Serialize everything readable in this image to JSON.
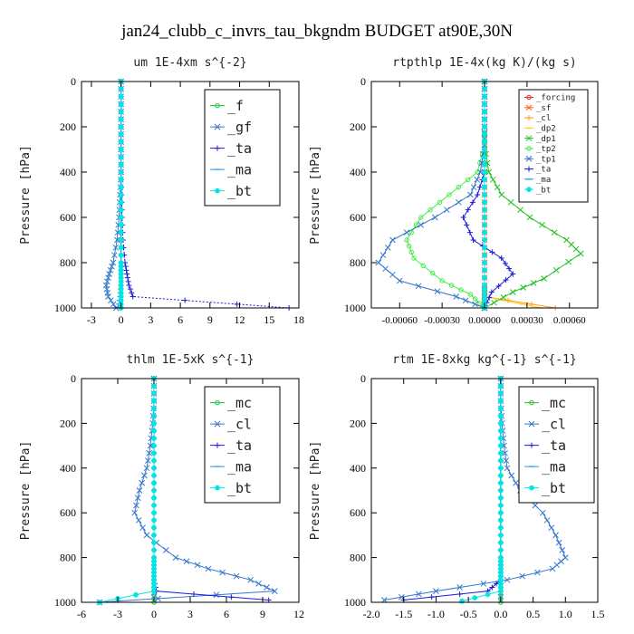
{
  "title": "jan24_clubb_c_invrs_tau_bkgndm  BUDGET at90E,30N",
  "colors": {
    "red": "#e8201a",
    "orange_red": "#ff5a1e",
    "orange": "#ff9a1e",
    "yellow": "#ffcc00",
    "green": "#20c020",
    "light_green": "#44ee44",
    "steel_blue": "#3377cc",
    "blue": "#1a1ad8",
    "sky_blue": "#2299ee",
    "cyan": "#00e5e5"
  },
  "chart_data": [
    {
      "type": "line",
      "title": "um  1E-4xm s^{-2}",
      "xlabel": "",
      "ylabel": "Pressure [hPa]",
      "xlim": [
        -4,
        18
      ],
      "ylim": [
        1000,
        0
      ],
      "xticks": [
        -3,
        0,
        3,
        6,
        9,
        12,
        15,
        18
      ],
      "xtick_labels": [
        "-3",
        "0",
        "3",
        "6",
        "9",
        "12",
        "15",
        "18"
      ],
      "yticks": [
        0,
        200,
        400,
        600,
        800,
        1000
      ],
      "ytick_labels": [
        "0",
        "200",
        "400",
        "600",
        "800",
        "1000"
      ],
      "legend_position": "top-right",
      "legend_font_size": "large",
      "series": [
        {
          "name": "_f",
          "color": "#20c020",
          "marker": "circle",
          "x": [
            0,
            0,
            0,
            0,
            0,
            0,
            0,
            0,
            0,
            0,
            0,
            0,
            0
          ],
          "y": [
            0,
            100,
            200,
            300,
            400,
            500,
            600,
            700,
            800,
            850,
            900,
            950,
            1000
          ]
        },
        {
          "name": "_gf",
          "color": "#3377cc",
          "marker": "x",
          "x": [
            0,
            0,
            0,
            0,
            0,
            -0.1,
            -0.2,
            -0.4,
            -0.8,
            -1.2,
            -1.5,
            -1.3,
            -0.5
          ],
          "y": [
            0,
            100,
            200,
            300,
            400,
            500,
            600,
            700,
            800,
            850,
            900,
            950,
            1000
          ]
        },
        {
          "name": "_ta",
          "color": "#1a1ad8",
          "marker": "plus",
          "x": [
            0,
            0,
            0,
            0,
            0,
            0.05,
            0.1,
            0.2,
            0.4,
            0.6,
            0.8,
            1.2,
            17
          ],
          "y": [
            0,
            100,
            200,
            300,
            400,
            500,
            600,
            700,
            800,
            850,
            900,
            950,
            1000
          ]
        },
        {
          "name": "_ma",
          "color": "#2299ee",
          "marker": "dash",
          "x": [
            0,
            0,
            0,
            0,
            0,
            0,
            0,
            0,
            0,
            0,
            0,
            -0.1,
            -0.3
          ],
          "y": [
            0,
            100,
            200,
            300,
            400,
            500,
            600,
            700,
            800,
            850,
            900,
            950,
            1000
          ]
        },
        {
          "name": "_bt",
          "color": "#00e5e5",
          "marker": "dot",
          "x": [
            0,
            0,
            0,
            0,
            0,
            0,
            0,
            0,
            0,
            0,
            0,
            0,
            0
          ],
          "y": [
            0,
            100,
            200,
            300,
            400,
            500,
            600,
            700,
            800,
            850,
            900,
            950,
            1000
          ]
        }
      ]
    },
    {
      "type": "line",
      "title": "rtpthlp  1E-4x(kg K)/(kg s)",
      "xlabel": "",
      "ylabel": "Pressure [hPa]",
      "xlim": [
        -0.0008,
        0.0008
      ],
      "ylim": [
        1000,
        0
      ],
      "xticks": [
        -0.0006,
        -0.0003,
        0.0,
        0.0003,
        0.0006
      ],
      "xtick_labels": [
        "-0.00060",
        "-0.00030",
        "0.00000",
        "0.00030",
        "0.00060"
      ],
      "yticks": [
        0,
        200,
        400,
        600,
        800,
        1000
      ],
      "ytick_labels": [
        "0",
        "200",
        "400",
        "600",
        "800",
        "1000"
      ],
      "legend_position": "top-right",
      "legend_font_size": "small",
      "series": [
        {
          "name": "_forcing",
          "color": "#e8201a",
          "marker": "circle",
          "x": [
            0,
            0,
            0,
            0,
            0,
            0,
            0,
            0,
            0,
            0,
            0,
            0
          ],
          "y": [
            0,
            100,
            200,
            300,
            400,
            500,
            600,
            700,
            800,
            900,
            950,
            1000
          ]
        },
        {
          "name": "_sf",
          "color": "#ff5a1e",
          "marker": "x",
          "x": [
            0,
            0,
            0,
            0,
            0,
            0,
            0,
            0,
            0,
            0,
            0,
            0
          ],
          "y": [
            0,
            100,
            200,
            300,
            400,
            500,
            600,
            700,
            800,
            900,
            950,
            1000
          ]
        },
        {
          "name": "_cl",
          "color": "#ff9a1e",
          "marker": "plus",
          "x": [
            0,
            0,
            0,
            0,
            0,
            0,
            0,
            0,
            0,
            0,
            0,
            0.0005
          ],
          "y": [
            0,
            100,
            200,
            300,
            400,
            500,
            600,
            700,
            800,
            900,
            950,
            1000
          ]
        },
        {
          "name": "_dp2",
          "color": "#ffcc00",
          "marker": "dash",
          "x": [
            0,
            0,
            0,
            0,
            0,
            0,
            0,
            0,
            0,
            0,
            0,
            0.0004
          ],
          "y": [
            0,
            100,
            200,
            300,
            400,
            500,
            600,
            700,
            800,
            900,
            950,
            1000
          ]
        },
        {
          "name": "_dp1",
          "color": "#20c020",
          "marker": "x",
          "x": [
            0,
            0,
            0,
            0,
            3e-05,
            0.00012,
            0.00032,
            0.00058,
            0.00068,
            0.00042,
            0.0002,
            0
          ],
          "y": [
            0,
            100,
            200,
            280,
            400,
            500,
            600,
            700,
            760,
            870,
            930,
            1000
          ]
        },
        {
          "name": "_tp2",
          "color": "#44ee44",
          "marker": "circle",
          "x": [
            0,
            0,
            0,
            0,
            -5e-05,
            -0.00025,
            -0.00045,
            -0.00055,
            -0.0005,
            -0.0003,
            -0.0001,
            0
          ],
          "y": [
            0,
            100,
            200,
            280,
            400,
            500,
            600,
            700,
            780,
            880,
            940,
            1000
          ]
        },
        {
          "name": "_tp1",
          "color": "#3377cc",
          "marker": "x",
          "x": [
            0,
            0,
            0,
            0,
            -3e-05,
            -0.0001,
            -0.00035,
            -0.00065,
            -0.00075,
            -0.0006,
            -0.0002,
            0
          ],
          "y": [
            0,
            100,
            200,
            280,
            400,
            500,
            600,
            700,
            800,
            880,
            950,
            1000
          ]
        },
        {
          "name": "_ta",
          "color": "#1a1ad8",
          "marker": "plus",
          "x": [
            0,
            0,
            0,
            0,
            0,
            -5e-05,
            -0.00015,
            -8e-05,
            0.00012,
            0.0002,
            5e-05,
            0
          ],
          "y": [
            0,
            100,
            200,
            300,
            400,
            500,
            600,
            700,
            780,
            850,
            930,
            1000
          ]
        },
        {
          "name": "_ma",
          "color": "#2299ee",
          "marker": "dash",
          "x": [
            0,
            0,
            0,
            0,
            0,
            0,
            0,
            0,
            0,
            0,
            0,
            0
          ],
          "y": [
            0,
            100,
            200,
            300,
            400,
            500,
            600,
            700,
            800,
            900,
            950,
            1000
          ]
        },
        {
          "name": "_bt",
          "color": "#00e5e5",
          "marker": "dot",
          "x": [
            0,
            0,
            0,
            0,
            0,
            0,
            0,
            0,
            0,
            0,
            0,
            0
          ],
          "y": [
            0,
            100,
            200,
            300,
            400,
            500,
            600,
            700,
            800,
            900,
            950,
            1000
          ]
        }
      ]
    },
    {
      "type": "line",
      "title": "thlm  1E-5xK s^{-1}",
      "xlabel": "",
      "ylabel": "Pressure [hPa]",
      "xlim": [
        -6,
        12
      ],
      "ylim": [
        1000,
        0
      ],
      "xticks": [
        -6,
        -3,
        0,
        3,
        6,
        9,
        12
      ],
      "xtick_labels": [
        "-6",
        "-3",
        "0",
        "3",
        "6",
        "9",
        "12"
      ],
      "yticks": [
        0,
        200,
        400,
        600,
        800,
        1000
      ],
      "ytick_labels": [
        "0",
        "200",
        "400",
        "600",
        "800",
        "1000"
      ],
      "legend_position": "top-right",
      "legend_font_size": "large",
      "series": [
        {
          "name": "_mc",
          "color": "#20c020",
          "marker": "circle",
          "x": [
            0,
            0,
            0,
            0,
            0,
            0,
            0,
            0,
            0,
            0,
            0,
            0,
            0
          ],
          "y": [
            0,
            100,
            200,
            300,
            400,
            500,
            600,
            700,
            800,
            850,
            900,
            950,
            1000
          ]
        },
        {
          "name": "_cl",
          "color": "#3377cc",
          "marker": "x",
          "x": [
            0,
            0,
            -0.1,
            -0.3,
            -0.6,
            -1.2,
            -1.6,
            -0.6,
            1.8,
            4.5,
            8.0,
            10.0,
            -4.5
          ],
          "y": [
            0,
            100,
            200,
            300,
            400,
            500,
            600,
            700,
            800,
            850,
            900,
            950,
            1000
          ]
        },
        {
          "name": "_ta",
          "color": "#1a1ad8",
          "marker": "plus",
          "x": [
            0,
            0,
            0,
            0,
            0,
            0,
            0,
            0,
            0,
            0,
            0,
            0.2,
            9.5
          ],
          "y": [
            0,
            100,
            200,
            300,
            400,
            500,
            600,
            700,
            800,
            850,
            900,
            950,
            990
          ]
        },
        {
          "name": "_ma",
          "color": "#2299ee",
          "marker": "dash",
          "x": [
            0,
            0,
            0,
            0,
            0,
            0,
            0,
            0,
            0,
            0,
            0,
            0,
            0
          ],
          "y": [
            0,
            100,
            200,
            300,
            400,
            500,
            600,
            700,
            800,
            850,
            900,
            950,
            1000
          ]
        },
        {
          "name": "_bt",
          "color": "#00e5e5",
          "marker": "dot",
          "x": [
            0,
            0,
            0,
            0,
            0,
            0,
            0,
            0,
            0,
            0,
            0,
            0,
            -4.5
          ],
          "y": [
            0,
            100,
            200,
            300,
            400,
            500,
            600,
            700,
            800,
            850,
            900,
            950,
            1000
          ]
        }
      ]
    },
    {
      "type": "line",
      "title": "rtm  1E-8xkg kg^{-1} s^{-1}",
      "xlabel": "",
      "ylabel": "Pressure [hPa]",
      "xlim": [
        -2.0,
        1.5
      ],
      "ylim": [
        1000,
        0
      ],
      "xticks": [
        -2.0,
        -1.5,
        -1.0,
        -0.5,
        0.0,
        0.5,
        1.0,
        1.5
      ],
      "xtick_labels": [
        "-2.0",
        "-1.5",
        "-1.0",
        "-0.5",
        "0.0",
        "0.5",
        "1.0",
        "1.5"
      ],
      "yticks": [
        0,
        200,
        400,
        600,
        800,
        1000
      ],
      "ytick_labels": [
        "0",
        "200",
        "400",
        "600",
        "800",
        "1000"
      ],
      "legend_position": "top-right",
      "legend_font_size": "large",
      "series": [
        {
          "name": "_mc",
          "color": "#20c020",
          "marker": "circle",
          "x": [
            0,
            0,
            0,
            0,
            0,
            0,
            0,
            0,
            0,
            0,
            0,
            0,
            0
          ],
          "y": [
            0,
            100,
            200,
            300,
            400,
            500,
            600,
            700,
            800,
            850,
            900,
            950,
            1000
          ]
        },
        {
          "name": "_cl",
          "color": "#3377cc",
          "marker": "x",
          "x": [
            0,
            0,
            0.02,
            0.05,
            0.1,
            0.3,
            0.65,
            0.85,
            1.0,
            0.8,
            0.1,
            -1.0,
            -1.8
          ],
          "y": [
            0,
            100,
            200,
            300,
            400,
            500,
            600,
            700,
            800,
            850,
            900,
            950,
            990
          ]
        },
        {
          "name": "_ta",
          "color": "#1a1ad8",
          "marker": "plus",
          "x": [
            0,
            0,
            0,
            0,
            0,
            0,
            0,
            0,
            0,
            0,
            0,
            -0.2,
            -1.5
          ],
          "y": [
            0,
            100,
            200,
            300,
            400,
            500,
            600,
            700,
            800,
            850,
            900,
            950,
            990
          ]
        },
        {
          "name": "_ma",
          "color": "#2299ee",
          "marker": "dash",
          "x": [
            0,
            0,
            0,
            0,
            0,
            0,
            0,
            0,
            0,
            0,
            0,
            0,
            0
          ],
          "y": [
            0,
            100,
            200,
            300,
            400,
            500,
            600,
            700,
            800,
            850,
            900,
            950,
            1000
          ]
        },
        {
          "name": "_bt",
          "color": "#00e5e5",
          "marker": "dot",
          "x": [
            0,
            0,
            0,
            0,
            0,
            0,
            0,
            0,
            0,
            0,
            0,
            0,
            -0.6
          ],
          "y": [
            0,
            100,
            200,
            300,
            400,
            500,
            600,
            700,
            800,
            850,
            900,
            950,
            995
          ]
        }
      ]
    }
  ]
}
